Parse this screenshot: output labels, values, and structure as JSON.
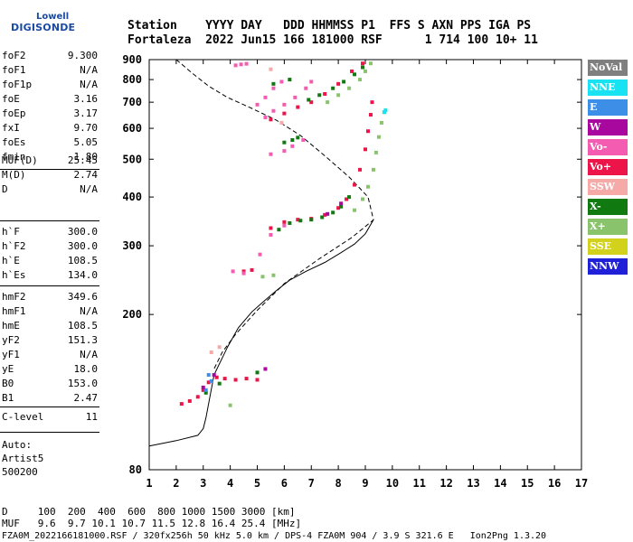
{
  "logo": {
    "line1": "Lowell",
    "line2": "DIGISONDE"
  },
  "header": {
    "line1": "Station    YYYY DAY   DDD HHMMSS P1  FFS S AXN PPS IGA PS",
    "line2": "Fortaleza  2022 Jun15 166 181000 RSF      1 714 100 10+ 11"
  },
  "params": {
    "group1": [
      {
        "name": "foF2",
        "value": "9.300"
      },
      {
        "name": "foF1",
        "value": "N/A"
      },
      {
        "name": "foF1p",
        "value": "N/A"
      },
      {
        "name": "foE",
        "value": "3.16"
      },
      {
        "name": "foEp",
        "value": "3.17"
      },
      {
        "name": "fxI",
        "value": "9.70"
      },
      {
        "name": "foEs",
        "value": "5.05"
      },
      {
        "name": "fmin",
        "value": "1.80"
      }
    ],
    "group2": [
      {
        "name": "MUF(D)",
        "value": "25.45"
      },
      {
        "name": "M(D)",
        "value": "2.74"
      },
      {
        "name": "D",
        "value": "N/A"
      }
    ],
    "group3": [
      {
        "name": "h`F",
        "value": "300.0"
      },
      {
        "name": "h`F2",
        "value": "300.0"
      },
      {
        "name": "h`E",
        "value": "108.5"
      },
      {
        "name": "h`Es",
        "value": "134.0"
      }
    ],
    "group4": [
      {
        "name": "hmF2",
        "value": "349.6"
      },
      {
        "name": "hmF1",
        "value": "N/A"
      },
      {
        "name": "hmE",
        "value": "108.5"
      },
      {
        "name": "yF2",
        "value": "151.3"
      },
      {
        "name": "yF1",
        "value": "N/A"
      },
      {
        "name": "yE",
        "value": "18.0"
      },
      {
        "name": "B0",
        "value": "153.0"
      },
      {
        "name": "B1",
        "value": "2.47"
      }
    ],
    "group5": [
      {
        "name": "C-level",
        "value": "11"
      }
    ]
  },
  "auto": {
    "line1": "Auto:",
    "line2": "Artist5",
    "line3": "500200"
  },
  "legend": [
    {
      "label": "NoVal",
      "bg": "#7f7f7f",
      "fg": "#ffffff"
    },
    {
      "label": "NNE",
      "bg": "#19e3f2",
      "fg": "#ffffff"
    },
    {
      "label": "E",
      "bg": "#3d8ee6",
      "fg": "#ffffff"
    },
    {
      "label": "W",
      "bg": "#a8089e",
      "fg": "#ffffff"
    },
    {
      "label": "Vo-",
      "bg": "#f35cb0",
      "fg": "#ffffff"
    },
    {
      "label": "Vo+",
      "bg": "#ec1448",
      "fg": "#ffffff"
    },
    {
      "label": "SSW",
      "bg": "#f5aaa8",
      "fg": "#ffffff"
    },
    {
      "label": "X-",
      "bg": "#107a10",
      "fg": "#ffffff"
    },
    {
      "label": "X+",
      "bg": "#89c46c",
      "fg": "#ffffff"
    },
    {
      "label": "SSE",
      "bg": "#d2d21c",
      "fg": "#ffffff"
    },
    {
      "label": "NNW",
      "bg": "#2020d8",
      "fg": "#ffffff"
    }
  ],
  "footer": {
    "line1": "D     100  200  400  600  800 1000 1500 3000 [km]",
    "line2": "MUF   9.6  9.7 10.1 10.7 11.5 12.8 16.4 25.4 [MHz]",
    "line3": "FZA0M_2022166181000.RSF / 320fx256h 50 kHz 5.0 km / DPS-4 FZA0M 904 / 3.9 S 321.6 E   Ion2Png 1.3.20"
  },
  "chart_data": {
    "type": "scatter",
    "title": "",
    "xlabel": "",
    "ylabel": "",
    "xlim": [
      1,
      17
    ],
    "ylim": [
      80,
      900
    ],
    "x_ticks": [
      1,
      2,
      3,
      4,
      5,
      6,
      7,
      8,
      9,
      10,
      11,
      12,
      13,
      14,
      15,
      16,
      17
    ],
    "y_ticks": [
      80,
      200,
      300,
      400,
      500,
      600,
      700,
      800,
      900
    ],
    "grid": false,
    "legend_position": "right",
    "series": [
      {
        "name": "Vo+",
        "color": "#ec1448",
        "points": [
          [
            2.2,
            118
          ],
          [
            2.5,
            120
          ],
          [
            2.8,
            123
          ],
          [
            3.0,
            128
          ],
          [
            3.2,
            134
          ],
          [
            3.5,
            138
          ],
          [
            3.8,
            137
          ],
          [
            4.2,
            136
          ],
          [
            4.6,
            137
          ],
          [
            5.0,
            136
          ],
          [
            5.5,
            333
          ],
          [
            6.0,
            345
          ],
          [
            6.5,
            350
          ],
          [
            7.0,
            352
          ],
          [
            7.5,
            360
          ],
          [
            8.0,
            375
          ],
          [
            8.3,
            395
          ],
          [
            8.6,
            430
          ],
          [
            8.8,
            470
          ],
          [
            9.0,
            530
          ],
          [
            9.1,
            590
          ],
          [
            9.2,
            650
          ],
          [
            9.25,
            700
          ],
          [
            4.5,
            258
          ],
          [
            4.8,
            260
          ],
          [
            5.5,
            632
          ],
          [
            6.0,
            655
          ],
          [
            6.5,
            680
          ],
          [
            7.0,
            700
          ],
          [
            7.5,
            735
          ],
          [
            8.0,
            780
          ],
          [
            8.5,
            840
          ],
          [
            8.9,
            880
          ]
        ]
      },
      {
        "name": "Vo-",
        "color": "#f35cb0",
        "points": [
          [
            4.1,
            258
          ],
          [
            4.5,
            255
          ],
          [
            5.1,
            285
          ],
          [
            5.5,
            320
          ],
          [
            6.0,
            338
          ],
          [
            5.3,
            640
          ],
          [
            5.6,
            665
          ],
          [
            6.0,
            690
          ],
          [
            6.4,
            720
          ],
          [
            6.8,
            760
          ],
          [
            7.0,
            790
          ],
          [
            5.0,
            690
          ],
          [
            5.3,
            720
          ],
          [
            5.6,
            760
          ],
          [
            5.9,
            790
          ],
          [
            5.5,
            515
          ],
          [
            6.0,
            525
          ],
          [
            6.3,
            540
          ],
          [
            6.7,
            560
          ],
          [
            4.2,
            870
          ],
          [
            4.4,
            875
          ],
          [
            4.6,
            878
          ]
        ]
      },
      {
        "name": "X-",
        "color": "#107a10",
        "points": [
          [
            5.8,
            330
          ],
          [
            6.2,
            343
          ],
          [
            6.6,
            348
          ],
          [
            7.0,
            350
          ],
          [
            7.4,
            355
          ],
          [
            7.8,
            365
          ],
          [
            8.1,
            378
          ],
          [
            8.4,
            400
          ],
          [
            5.0,
            142
          ],
          [
            3.1,
            126
          ],
          [
            3.6,
            133
          ],
          [
            6.0,
            552
          ],
          [
            6.3,
            560
          ],
          [
            6.5,
            568
          ],
          [
            6.9,
            710
          ],
          [
            7.3,
            730
          ],
          [
            7.8,
            760
          ],
          [
            8.2,
            790
          ],
          [
            8.6,
            825
          ],
          [
            8.9,
            860
          ],
          [
            5.6,
            780
          ],
          [
            6.2,
            800
          ]
        ]
      },
      {
        "name": "X+",
        "color": "#89c46c",
        "points": [
          [
            8.6,
            370
          ],
          [
            8.9,
            395
          ],
          [
            9.1,
            425
          ],
          [
            9.3,
            470
          ],
          [
            9.4,
            520
          ],
          [
            9.5,
            570
          ],
          [
            9.6,
            620
          ],
          [
            9.7,
            660
          ],
          [
            7.6,
            700
          ],
          [
            8.0,
            730
          ],
          [
            8.4,
            760
          ],
          [
            8.8,
            800
          ],
          [
            9.0,
            840
          ],
          [
            9.2,
            880
          ],
          [
            5.2,
            250
          ],
          [
            5.6,
            252
          ],
          [
            4.0,
            117
          ]
        ]
      },
      {
        "name": "E",
        "color": "#3d8ee6",
        "points": [
          [
            3.1,
            128
          ],
          [
            3.3,
            135
          ],
          [
            3.2,
            140
          ]
        ]
      },
      {
        "name": "NNE",
        "color": "#19e3f2",
        "points": [
          [
            9.7,
            660
          ],
          [
            9.75,
            668
          ]
        ]
      },
      {
        "name": "W",
        "color": "#a8089e",
        "points": [
          [
            3.0,
            130
          ],
          [
            3.4,
            140
          ],
          [
            5.3,
            145
          ],
          [
            7.6,
            362
          ],
          [
            8.1,
            385
          ]
        ]
      },
      {
        "name": "SSW",
        "color": "#f5aaa8",
        "points": [
          [
            3.3,
            160
          ],
          [
            3.6,
            165
          ],
          [
            5.9,
            620
          ],
          [
            5.5,
            850
          ]
        ]
      }
    ],
    "profile_solid": [
      [
        1.0,
        92
      ],
      [
        2.0,
        95
      ],
      [
        2.8,
        98
      ],
      [
        3.0,
        102
      ],
      [
        3.1,
        108.5
      ],
      [
        3.4,
        140
      ],
      [
        3.9,
        165
      ],
      [
        4.3,
        185
      ],
      [
        4.8,
        203
      ],
      [
        5.2,
        215
      ],
      [
        5.7,
        230
      ],
      [
        6.2,
        245
      ],
      [
        6.8,
        258
      ],
      [
        7.5,
        272
      ],
      [
        8.1,
        288
      ],
      [
        8.6,
        303
      ],
      [
        9.0,
        322
      ],
      [
        9.25,
        345
      ],
      [
        9.3,
        349.6
      ]
    ],
    "profile_dashed": [
      [
        2.0,
        900
      ],
      [
        2.6,
        830
      ],
      [
        3.2,
        770
      ],
      [
        3.9,
        720
      ],
      [
        4.7,
        680
      ],
      [
        5.7,
        630
      ],
      [
        6.6,
        575
      ],
      [
        7.5,
        510
      ],
      [
        8.4,
        450
      ],
      [
        9.1,
        400
      ],
      [
        9.3,
        349.6
      ],
      [
        8.5,
        315
      ],
      [
        7.3,
        278
      ],
      [
        6.0,
        240
      ],
      [
        5.0,
        205
      ],
      [
        4.2,
        178
      ],
      [
        3.7,
        160
      ],
      [
        3.4,
        145
      ]
    ]
  }
}
